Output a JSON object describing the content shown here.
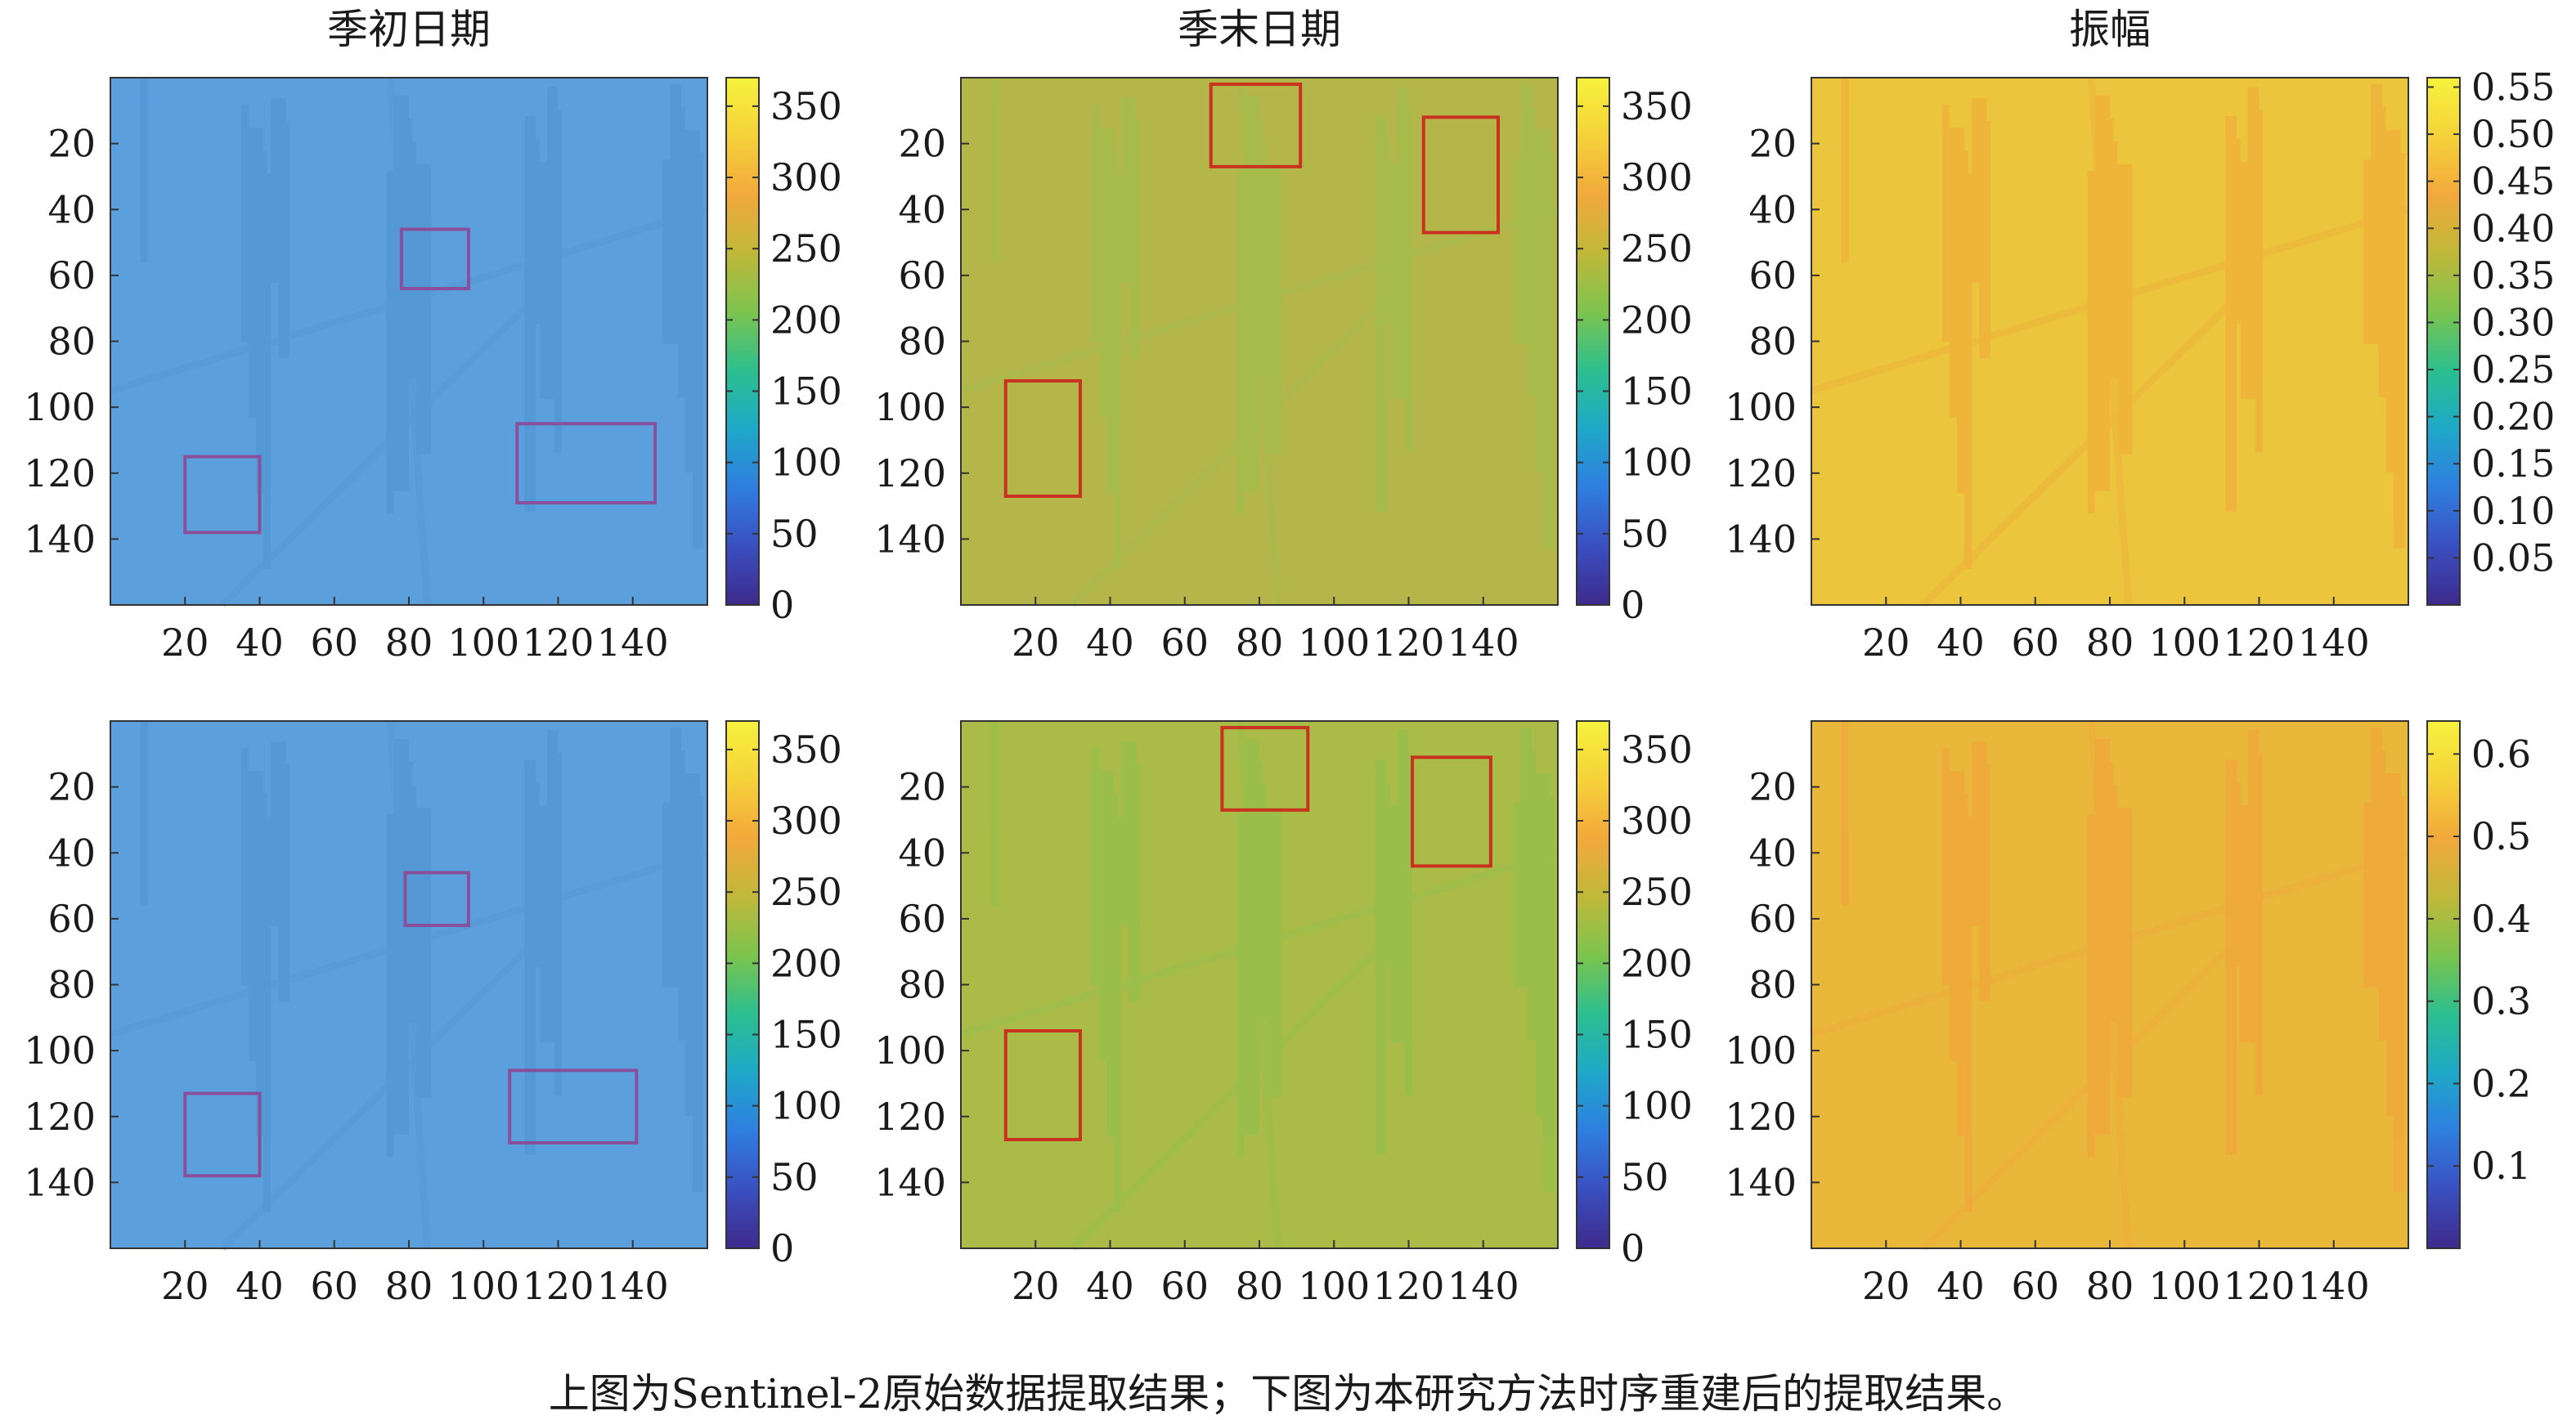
{
  "caption": "上图为Sentinel-2原始数据提取结果；下图为本研究方法时序重建后的提取结果。",
  "colors": {
    "frame": "#333333",
    "box_blue_panels": "#8a4f9a",
    "box_green_panels": "#c8321e",
    "colormap": [
      "#3e2a8c",
      "#3a4fc0",
      "#2f7ee0",
      "#1fa8c8",
      "#2cbf8f",
      "#7cc44e",
      "#c0b83a",
      "#f2a93b",
      "#f5d23a",
      "#f6f23c"
    ]
  },
  "chart_data": [
    {
      "type": "heatmap",
      "row": 1,
      "col": 1,
      "title": "季初日期",
      "fill": "#5ba0dd",
      "texture": "#4f92d2",
      "xticks": [
        "20",
        "40",
        "60",
        "80",
        "100",
        "120",
        "140"
      ],
      "yticks": [
        "20",
        "40",
        "60",
        "80",
        "100",
        "120",
        "140"
      ],
      "colorbar": {
        "ticks": [
          "350",
          "300",
          "250",
          "200",
          "150",
          "100",
          "50",
          "0"
        ],
        "range": [
          0,
          370
        ]
      },
      "boxes": [
        [
          78,
          46,
          96,
          64
        ],
        [
          20,
          115,
          40,
          138
        ],
        [
          109,
          105,
          146,
          129
        ]
      ]
    },
    {
      "type": "heatmap",
      "row": 1,
      "col": 2,
      "title": "季末日期",
      "fill": "#b5b64a",
      "texture": "#9cc04c",
      "xticks": [
        "20",
        "40",
        "60",
        "80",
        "100",
        "120",
        "140"
      ],
      "yticks": [
        "20",
        "40",
        "60",
        "80",
        "100",
        "120",
        "140"
      ],
      "colorbar": {
        "ticks": [
          "350",
          "300",
          "250",
          "200",
          "150",
          "100",
          "50",
          "0"
        ],
        "range": [
          0,
          370
        ]
      },
      "boxes": [
        [
          67,
          2,
          91,
          27
        ],
        [
          124,
          12,
          144,
          47
        ],
        [
          12,
          92,
          32,
          127
        ]
      ]
    },
    {
      "type": "heatmap",
      "row": 1,
      "col": 3,
      "title": "振幅",
      "fill": "#ebc53c",
      "texture": "#f1a83a",
      "xticks": [
        "20",
        "40",
        "60",
        "80",
        "100",
        "120",
        "140"
      ],
      "yticks": [
        "20",
        "40",
        "60",
        "80",
        "100",
        "120",
        "140"
      ],
      "colorbar": {
        "ticks": [
          "0.55",
          "0.50",
          "0.45",
          "0.40",
          "0.35",
          "0.30",
          "0.25",
          "0.20",
          "0.15",
          "0.10",
          "0.05"
        ],
        "range": [
          0,
          0.56
        ]
      },
      "boxes": []
    },
    {
      "type": "heatmap",
      "row": 2,
      "col": 1,
      "title": "",
      "fill": "#5ba0dd",
      "texture": "#4f92d2",
      "xticks": [
        "20",
        "40",
        "60",
        "80",
        "100",
        "120",
        "140"
      ],
      "yticks": [
        "20",
        "40",
        "60",
        "80",
        "100",
        "120",
        "140"
      ],
      "colorbar": {
        "ticks": [
          "350",
          "300",
          "250",
          "200",
          "150",
          "100",
          "50",
          "0"
        ],
        "range": [
          0,
          370
        ]
      },
      "boxes": [
        [
          79,
          46,
          96,
          62
        ],
        [
          20,
          113,
          40,
          138
        ],
        [
          107,
          106,
          141,
          128
        ]
      ]
    },
    {
      "type": "heatmap",
      "row": 2,
      "col": 2,
      "title": "",
      "fill": "#aabb48",
      "texture": "#8fc24d",
      "xticks": [
        "20",
        "40",
        "60",
        "80",
        "100",
        "120",
        "140"
      ],
      "yticks": [
        "20",
        "40",
        "60",
        "80",
        "100",
        "120",
        "140"
      ],
      "colorbar": {
        "ticks": [
          "350",
          "300",
          "250",
          "200",
          "150",
          "100",
          "50",
          "0"
        ],
        "range": [
          0,
          370
        ]
      },
      "boxes": [
        [
          70,
          2,
          93,
          27
        ],
        [
          121,
          11,
          142,
          44
        ],
        [
          12,
          94,
          32,
          127
        ]
      ]
    },
    {
      "type": "heatmap",
      "row": 2,
      "col": 3,
      "title": "",
      "fill": "#e9b83b",
      "texture": "#f3a23a",
      "xticks": [
        "20",
        "40",
        "60",
        "80",
        "100",
        "120",
        "140"
      ],
      "yticks": [
        "20",
        "40",
        "60",
        "80",
        "100",
        "120",
        "140"
      ],
      "colorbar": {
        "ticks": [
          "0.6",
          "0.5",
          "0.4",
          "0.3",
          "0.2",
          "0.1"
        ],
        "range": [
          0,
          0.64
        ]
      },
      "boxes": []
    }
  ]
}
